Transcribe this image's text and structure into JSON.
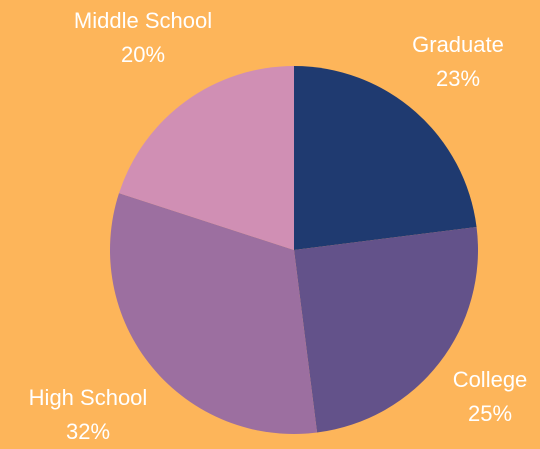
{
  "chart_data": {
    "type": "pie",
    "categories": [
      "Graduate",
      "College",
      "High School",
      "Middle School"
    ],
    "values": [
      23,
      25,
      32,
      20
    ],
    "value_labels": [
      "23%",
      "25%",
      "32%",
      "20%"
    ],
    "colors": [
      "#1f3a70",
      "#63528a",
      "#9c6fa0",
      "#d08fb4"
    ]
  }
}
